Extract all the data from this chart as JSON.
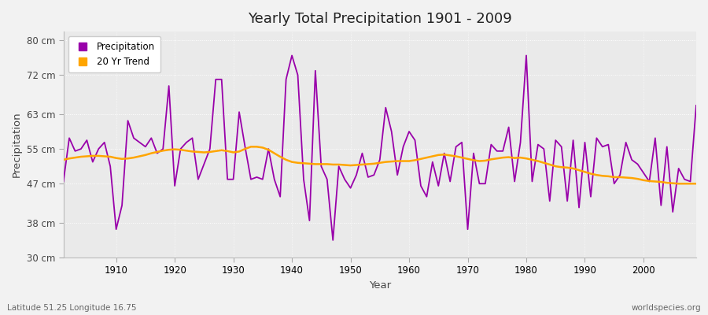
{
  "title": "Yearly Total Precipitation 1901 - 2009",
  "xlabel": "Year",
  "ylabel": "Precipitation",
  "subtitle_left": "Latitude 51.25 Longitude 16.75",
  "subtitle_right": "worldspecies.org",
  "legend_labels": [
    "Precipitation",
    "20 Yr Trend"
  ],
  "precip_color": "#9900AA",
  "trend_color": "#FFA500",
  "figure_bg": "#F2F2F2",
  "plot_bg": "#EAEAEA",
  "grid_color": "#FFFFFF",
  "ylim": [
    30,
    82
  ],
  "ytick_labels": [
    "30 cm",
    "38 cm",
    "47 cm",
    "55 cm",
    "63 cm",
    "72 cm",
    "80 cm"
  ],
  "ytick_values": [
    30,
    38,
    47,
    55,
    63,
    72,
    80
  ],
  "years": [
    1901,
    1902,
    1903,
    1904,
    1905,
    1906,
    1907,
    1908,
    1909,
    1910,
    1911,
    1912,
    1913,
    1914,
    1915,
    1916,
    1917,
    1918,
    1919,
    1920,
    1921,
    1922,
    1923,
    1924,
    1925,
    1926,
    1927,
    1928,
    1929,
    1930,
    1931,
    1932,
    1933,
    1934,
    1935,
    1936,
    1937,
    1938,
    1939,
    1940,
    1941,
    1942,
    1943,
    1944,
    1945,
    1946,
    1947,
    1948,
    1949,
    1950,
    1951,
    1952,
    1953,
    1954,
    1955,
    1956,
    1957,
    1958,
    1959,
    1960,
    1961,
    1962,
    1963,
    1964,
    1965,
    1966,
    1967,
    1968,
    1969,
    1970,
    1971,
    1972,
    1973,
    1974,
    1975,
    1976,
    1977,
    1978,
    1979,
    1980,
    1981,
    1982,
    1983,
    1984,
    1985,
    1986,
    1987,
    1988,
    1989,
    1990,
    1991,
    1992,
    1993,
    1994,
    1995,
    1996,
    1997,
    1998,
    1999,
    2000,
    2001,
    2002,
    2003,
    2004,
    2005,
    2006,
    2007,
    2008,
    2009
  ],
  "precipitation": [
    47.5,
    57.5,
    54.5,
    55.0,
    57.0,
    52.0,
    55.0,
    56.5,
    51.0,
    36.5,
    42.0,
    61.5,
    57.5,
    56.5,
    55.5,
    57.5,
    54.0,
    55.0,
    69.5,
    46.5,
    55.0,
    56.5,
    57.5,
    48.0,
    51.5,
    55.0,
    71.0,
    71.0,
    48.0,
    48.0,
    63.5,
    55.5,
    48.0,
    48.5,
    48.0,
    55.0,
    48.0,
    44.0,
    71.0,
    76.5,
    72.0,
    48.0,
    38.5,
    73.0,
    51.0,
    48.0,
    34.0,
    51.0,
    48.0,
    46.0,
    49.0,
    54.0,
    48.5,
    49.0,
    52.5,
    64.5,
    59.0,
    49.0,
    55.5,
    59.0,
    57.0,
    46.5,
    44.0,
    52.0,
    46.5,
    54.0,
    47.5,
    55.5,
    56.5,
    36.5,
    54.0,
    47.0,
    47.0,
    56.0,
    54.5,
    54.5,
    60.0,
    47.5,
    56.5,
    76.5,
    47.5,
    56.0,
    55.0,
    43.0,
    57.0,
    55.5,
    43.0,
    57.0,
    41.5,
    56.5,
    44.0,
    57.5,
    55.5,
    56.0,
    47.0,
    49.0,
    56.5,
    52.5,
    51.5,
    49.5,
    47.5,
    57.5,
    42.0,
    55.5,
    40.5,
    50.5,
    48.0,
    47.5,
    65.0
  ],
  "trend": [
    52.5,
    52.8,
    53.0,
    53.2,
    53.3,
    53.4,
    53.4,
    53.3,
    53.2,
    52.9,
    52.7,
    52.8,
    53.0,
    53.3,
    53.6,
    54.0,
    54.3,
    54.6,
    54.8,
    54.9,
    54.8,
    54.6,
    54.4,
    54.3,
    54.2,
    54.3,
    54.5,
    54.7,
    54.5,
    54.2,
    54.4,
    55.0,
    55.5,
    55.5,
    55.3,
    54.8,
    54.0,
    53.2,
    52.5,
    52.0,
    51.8,
    51.7,
    51.6,
    51.5,
    51.5,
    51.5,
    51.4,
    51.4,
    51.3,
    51.2,
    51.3,
    51.4,
    51.5,
    51.6,
    51.8,
    52.0,
    52.1,
    52.2,
    52.2,
    52.2,
    52.4,
    52.7,
    53.0,
    53.3,
    53.6,
    53.7,
    53.5,
    53.3,
    53.0,
    52.7,
    52.4,
    52.2,
    52.3,
    52.6,
    52.8,
    53.0,
    53.1,
    52.9,
    53.0,
    52.8,
    52.5,
    52.2,
    51.8,
    51.4,
    51.0,
    50.8,
    50.7,
    50.5,
    50.1,
    49.7,
    49.3,
    49.0,
    48.8,
    48.7,
    48.5,
    48.5,
    48.4,
    48.3,
    48.1,
    47.8,
    47.6,
    47.5,
    47.4,
    47.2,
    47.1,
    47.0,
    47.0,
    47.0,
    47.0
  ]
}
